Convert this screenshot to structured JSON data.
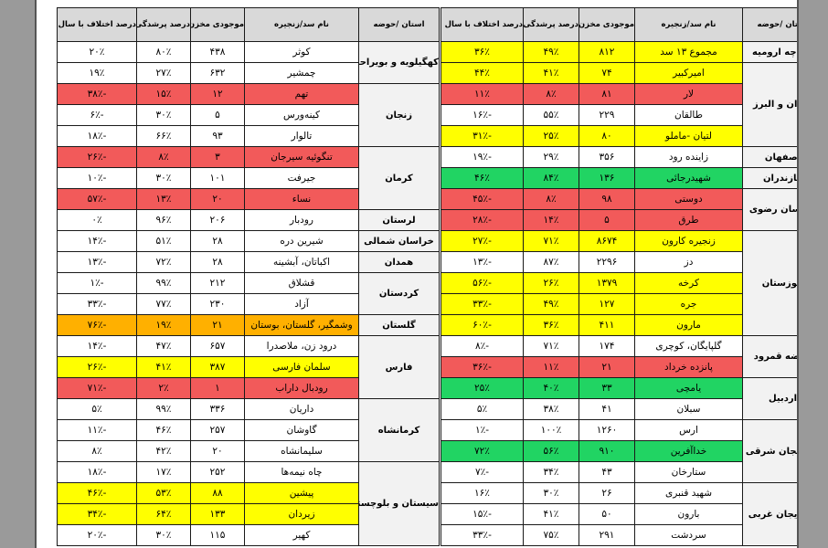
{
  "headers": {
    "province": "استان /حوضه",
    "dam": "نام سد/زنجیره",
    "storage": "موجودی مخزن",
    "fill_pct": "درصد پرشدگی",
    "diff_pct": "درصد اختلاف با سال قبل"
  },
  "colors": {
    "red": "#f25a5a",
    "yellow": "#ffff00",
    "green": "#21d463",
    "orange": "#ffb000",
    "gray": "#f2f2f2"
  },
  "left_table": [
    {
      "province": "کهگیلویه و بویراحمد",
      "rows": [
        {
          "dam": "کوثر",
          "storage": "۴۳۸",
          "fill": "۸۰٪",
          "diff": "۲۰٪",
          "color": ""
        },
        {
          "dam": "چمشیر",
          "storage": "۶۳۲",
          "fill": "۲۷٪",
          "diff": "۱۹٪",
          "color": ""
        }
      ]
    },
    {
      "province": "زنجان",
      "rows": [
        {
          "dam": "تهم",
          "storage": "۱۲",
          "fill": "۱۵٪",
          "diff": "-۳۸٪",
          "color": "red"
        },
        {
          "dam": "کینه‌ورس",
          "storage": "۵",
          "fill": "۳۰٪",
          "diff": "-۶٪",
          "color": ""
        },
        {
          "dam": "تالوار",
          "storage": "۹۳",
          "fill": "۶۶٪",
          "diff": "-۱۸٪",
          "color": ""
        }
      ]
    },
    {
      "province": "کرمان",
      "rows": [
        {
          "dam": "تنگوئیه سیرجان",
          "storage": "۳",
          "fill": "۸٪",
          "diff": "-۲۶٪",
          "color": "red"
        },
        {
          "dam": "جیرفت",
          "storage": "۱۰۱",
          "fill": "۳۰٪",
          "diff": "-۱۰٪",
          "color": ""
        },
        {
          "dam": "نساء",
          "storage": "۲۰",
          "fill": "۱۳٪",
          "diff": "-۵۷٪",
          "color": "red"
        }
      ]
    },
    {
      "province": "لرستان",
      "rows": [
        {
          "dam": "رودبار",
          "storage": "۲۰۶",
          "fill": "۹۶٪",
          "diff": "۰٪",
          "color": ""
        }
      ]
    },
    {
      "province": "خراسان شمالی",
      "rows": [
        {
          "dam": "شیرین دره",
          "storage": "۲۸",
          "fill": "۵۱٪",
          "diff": "-۱۴٪",
          "color": ""
        }
      ]
    },
    {
      "province": "همدان",
      "rows": [
        {
          "dam": "اکباتان، آبشینه",
          "storage": "۲۸",
          "fill": "۷۲٪",
          "diff": "-۱۳٪",
          "color": ""
        }
      ]
    },
    {
      "province": "کردستان",
      "rows": [
        {
          "dam": "قشلاق",
          "storage": "۲۱۲",
          "fill": "۹۹٪",
          "diff": "-۱٪",
          "color": ""
        },
        {
          "dam": "آزاد",
          "storage": "۲۳۰",
          "fill": "۷۷٪",
          "diff": "-۳۳٪",
          "color": ""
        }
      ]
    },
    {
      "province": "گلستان",
      "rows": [
        {
          "dam": "وشمگیر، گلستان، بوستان",
          "storage": "۲۱",
          "fill": "۱۹٪",
          "diff": "-۷۶٪",
          "color": "orange"
        }
      ]
    },
    {
      "province": "فارس",
      "rows": [
        {
          "dam": "درود زن، ملاصدرا",
          "storage": "۶۵۷",
          "fill": "۴۷٪",
          "diff": "-۱۴٪",
          "color": ""
        },
        {
          "dam": "سلمان فارسی",
          "storage": "۳۸۷",
          "fill": "۴۱٪",
          "diff": "-۲۶٪",
          "color": "yellow"
        },
        {
          "dam": "رودبال داراب",
          "storage": "۱",
          "fill": "۲٪",
          "diff": "-۷۱٪",
          "color": "red"
        }
      ]
    },
    {
      "province": "کرمانشاه",
      "rows": [
        {
          "dam": "داریان",
          "storage": "۳۳۶",
          "fill": "۹۹٪",
          "diff": "۵٪",
          "color": ""
        },
        {
          "dam": "گاوشان",
          "storage": "۲۵۷",
          "fill": "۴۶٪",
          "diff": "-۱۱٪",
          "color": ""
        },
        {
          "dam": "سلیمانشاه",
          "storage": "۲۰",
          "fill": "۴۲٪",
          "diff": "۸٪",
          "color": ""
        }
      ]
    },
    {
      "province": "سیستان و بلوچستان",
      "rows": [
        {
          "dam": "چاه نیمه‌ها",
          "storage": "۲۵۲",
          "fill": "۱۷٪",
          "diff": "-۱۸٪",
          "color": ""
        },
        {
          "dam": "پیشین",
          "storage": "۸۸",
          "fill": "۵۳٪",
          "diff": "-۴۶٪",
          "color": "yellow"
        },
        {
          "dam": "زیردان",
          "storage": "۱۳۳",
          "fill": "۶۴٪",
          "diff": "-۳۴٪",
          "color": "yellow"
        },
        {
          "dam": "کهیر",
          "storage": "۱۱۵",
          "fill": "۳۰٪",
          "diff": "-۲۰٪",
          "color": ""
        }
      ]
    }
  ],
  "right_table": [
    {
      "province": "دریاچه ارومیه",
      "rows": [
        {
          "dam": "مجموع ۱۳ سد",
          "storage": "۸۱۲",
          "fill": "۴۹٪",
          "diff": "۳۶٪",
          "color": "yellow"
        }
      ]
    },
    {
      "province": "تهران و البرز",
      "rows": [
        {
          "dam": "امیرکبیر",
          "storage": "۷۴",
          "fill": "۴۱٪",
          "diff": "۴۴٪",
          "color": "yellow"
        },
        {
          "dam": "لار",
          "storage": "۸۱",
          "fill": "۸٪",
          "diff": "۱۱٪",
          "color": "red"
        },
        {
          "dam": "طالقان",
          "storage": "۲۲۹",
          "fill": "۵۵٪",
          "diff": "-۱۶٪",
          "color": ""
        },
        {
          "dam": "لتیان -ماملو",
          "storage": "۸۰",
          "fill": "۲۵٪",
          "diff": "-۳۱٪",
          "color": "yellow"
        }
      ]
    },
    {
      "province": "اصفهان",
      "rows": [
        {
          "dam": "زاینده رود",
          "storage": "۳۵۶",
          "fill": "۲۹٪",
          "diff": "-۱۹٪",
          "color": ""
        }
      ]
    },
    {
      "province": "مازندران",
      "rows": [
        {
          "dam": "شهیدرجائی",
          "storage": "۱۳۶",
          "fill": "۸۴٪",
          "diff": "۴۶٪",
          "color": "green"
        }
      ]
    },
    {
      "province": "خراسان رضوی",
      "rows": [
        {
          "dam": "دوستی",
          "storage": "۹۸",
          "fill": "۸٪",
          "diff": "-۴۵٪",
          "color": "red"
        },
        {
          "dam": "طرق",
          "storage": "۵",
          "fill": "۱۴٪",
          "diff": "-۲۸٪",
          "color": "red"
        }
      ]
    },
    {
      "province": "خوزستان",
      "rows": [
        {
          "dam": "زنجیره کارون",
          "storage": "۸۶۷۴",
          "fill": "۷۱٪",
          "diff": "-۲۷٪",
          "color": "yellow"
        },
        {
          "dam": "دز",
          "storage": "۲۲۹۶",
          "fill": "۸۷٪",
          "diff": "-۱۳٪",
          "color": ""
        },
        {
          "dam": "کرخه",
          "storage": "۱۳۷۹",
          "fill": "۲۶٪",
          "diff": "-۵۶٪",
          "color": "yellow"
        },
        {
          "dam": "جره",
          "storage": "۱۲۷",
          "fill": "۴۹٪",
          "diff": "-۳۳٪",
          "color": "yellow"
        },
        {
          "dam": "مارون",
          "storage": "۴۱۱",
          "fill": "۳۶٪",
          "diff": "-۶۰٪",
          "color": "yellow"
        }
      ]
    },
    {
      "province": "حوضه قمرود",
      "rows": [
        {
          "dam": "گلپایگان، کوچری",
          "storage": "۱۷۴",
          "fill": "۷۱٪",
          "diff": "-۸٪",
          "color": ""
        },
        {
          "dam": "پانزده خرداد",
          "storage": "۲۱",
          "fill": "۱۱٪",
          "diff": "-۳۶٪",
          "color": "red"
        }
      ]
    },
    {
      "province": "اردبیل",
      "rows": [
        {
          "dam": "یامچی",
          "storage": "۳۳",
          "fill": "۴۰٪",
          "diff": "۲۵٪",
          "color": "green"
        },
        {
          "dam": "سبلان",
          "storage": "۴۱",
          "fill": "۳۸٪",
          "diff": "۵٪",
          "color": ""
        }
      ]
    },
    {
      "province": "آذربایجان شرقی",
      "rows": [
        {
          "dam": "ارس",
          "storage": "۱۲۶۰",
          "fill": "۱۰۰٪",
          "diff": "-۱٪",
          "color": ""
        },
        {
          "dam": "خداآفرین",
          "storage": "۹۱۰",
          "fill": "۵۶٪",
          "diff": "۷۲٪",
          "color": "green"
        },
        {
          "dam": "ستارخان",
          "storage": "۴۳",
          "fill": "۳۴٪",
          "diff": "-۷٪",
          "color": ""
        }
      ]
    },
    {
      "province": "آذربایجان غربی",
      "rows": [
        {
          "dam": "شهید قنبری",
          "storage": "۲۶",
          "fill": "۳۰٪",
          "diff": "۱۶٪",
          "color": ""
        },
        {
          "dam": "بارون",
          "storage": "۵۰",
          "fill": "۴۱٪",
          "diff": "-۱۵٪",
          "color": ""
        },
        {
          "dam": "سردشت",
          "storage": "۲۹۱",
          "fill": "۷۵٪",
          "diff": "-۳۳٪",
          "color": ""
        }
      ]
    }
  ]
}
